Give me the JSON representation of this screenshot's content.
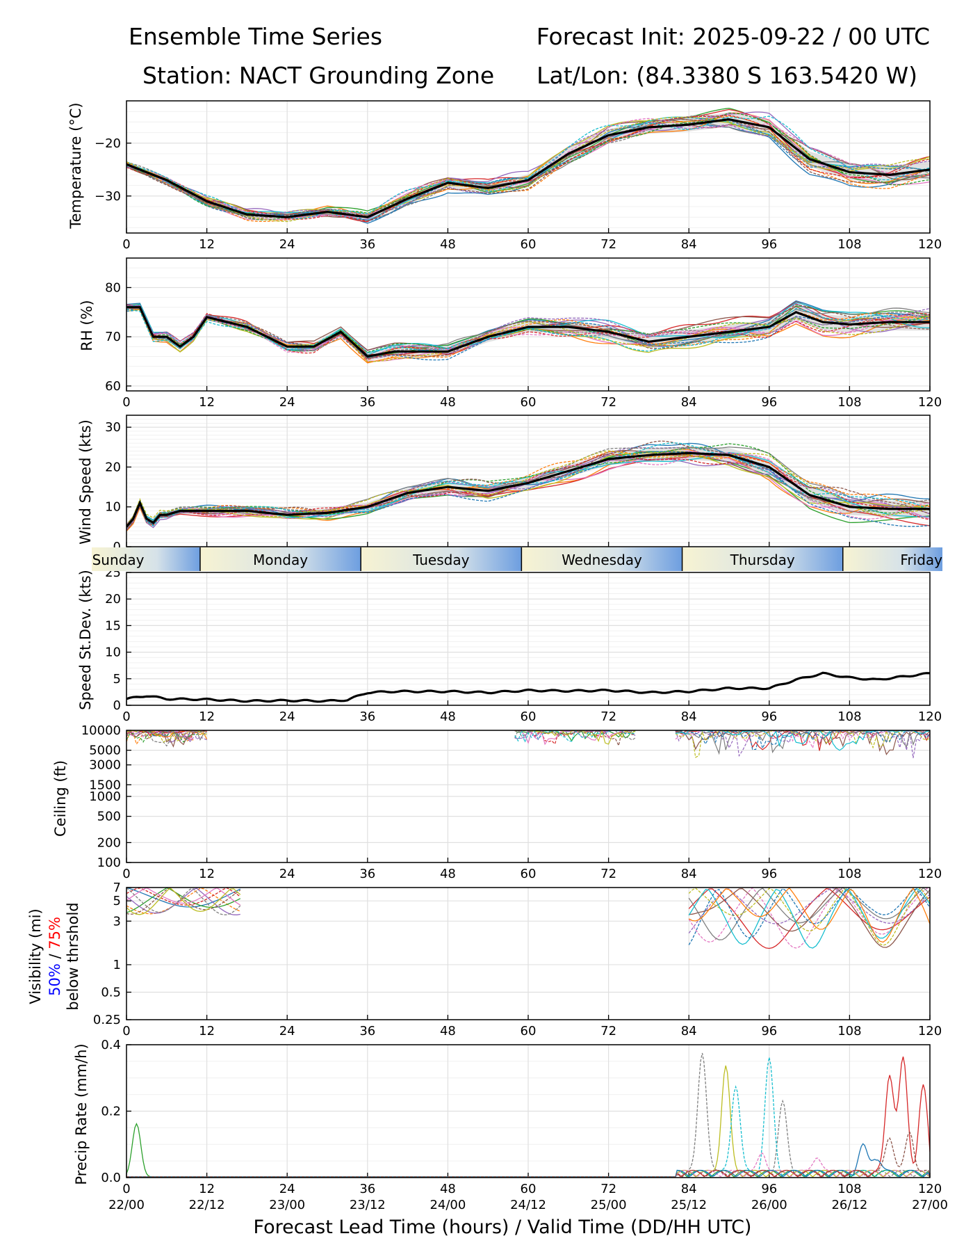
{
  "header": {
    "title": "Ensemble Time Series",
    "station": "Station: NACT Grounding Zone",
    "init": "Forecast Init: 2025-09-22 / 00 UTC",
    "latlon": "Lat/Lon: (84.3380 S 163.5420 W)"
  },
  "xaxis": {
    "label": "Forecast Lead Time (hours) / Valid Time (DD/HH UTC)",
    "ticks": [
      "0",
      "12",
      "24",
      "36",
      "48",
      "60",
      "72",
      "84",
      "96",
      "108",
      "120"
    ],
    "valid_ticks": [
      "22/00",
      "22/12",
      "23/00",
      "23/12",
      "24/00",
      "24/12",
      "25/00",
      "25/12",
      "26/00",
      "26/12",
      "27/00"
    ]
  },
  "day_band": [
    "Sunday",
    "Monday",
    "Tuesday",
    "Wednesday",
    "Thursday",
    "Friday"
  ],
  "colors": {
    "members": [
      "#1f77b4",
      "#ff7f0e",
      "#2ca02c",
      "#d62728",
      "#9467bd",
      "#8c564b",
      "#e377c2",
      "#7f7f7f",
      "#bcbd22",
      "#17becf"
    ],
    "mean": "#000000",
    "spread": "#c8c8c8",
    "vis_50": "#0000ff",
    "vis_75": "#ff0000"
  },
  "chart_data": [
    {
      "type": "line",
      "id": "temperature",
      "ylabel": "Temperature (°C)",
      "ylim": [
        -37,
        -12
      ],
      "yticks": [
        "−20",
        "−30"
      ],
      "ytick_values": [
        -20,
        -30
      ],
      "mean": {
        "x": [
          0,
          6,
          12,
          18,
          24,
          30,
          36,
          42,
          48,
          54,
          60,
          66,
          72,
          78,
          84,
          90,
          96,
          102,
          108,
          114,
          120
        ],
        "y": [
          -24,
          -27,
          -31,
          -33.5,
          -34,
          -33,
          -34,
          -30.5,
          -27.5,
          -28.5,
          -27,
          -22,
          -18.5,
          -17,
          -16.5,
          -15.5,
          -17,
          -23,
          -25.5,
          -26,
          -25
        ]
      }
    },
    {
      "type": "line",
      "id": "rh",
      "ylabel": "RH (%)",
      "ylim": [
        59,
        86
      ],
      "yticks": [
        "80",
        "70",
        "60"
      ],
      "ytick_values": [
        80,
        70,
        60
      ],
      "mean": {
        "x": [
          0,
          2,
          4,
          6,
          8,
          10,
          12,
          18,
          24,
          28,
          32,
          36,
          40,
          48,
          54,
          60,
          66,
          72,
          78,
          84,
          90,
          96,
          100,
          104,
          108,
          114,
          120
        ],
        "y": [
          76,
          76,
          70,
          70,
          68,
          70,
          74,
          72,
          68,
          68,
          71,
          66,
          67,
          67,
          70,
          72,
          72,
          71,
          69,
          70,
          71,
          72,
          75,
          73,
          72.5,
          73,
          73
        ]
      }
    },
    {
      "type": "line",
      "id": "wind",
      "ylabel": "Wind Speed (kts)",
      "ylim": [
        0,
        33
      ],
      "yticks": [
        "30",
        "20",
        "10",
        "0"
      ],
      "ytick_values": [
        30,
        20,
        10,
        0
      ],
      "mean": {
        "x": [
          0,
          1,
          2,
          3,
          4,
          5,
          6,
          8,
          12,
          18,
          24,
          30,
          36,
          42,
          48,
          54,
          60,
          66,
          72,
          78,
          84,
          90,
          96,
          102,
          108,
          114,
          120
        ],
        "y": [
          5,
          7,
          11,
          7,
          6,
          8,
          8,
          9,
          9,
          9,
          8,
          8.5,
          10,
          13.5,
          15,
          14,
          16,
          19,
          22,
          23,
          23.5,
          23,
          20,
          13,
          10,
          9.5,
          9.5
        ]
      }
    },
    {
      "type": "line",
      "id": "speed_stdev",
      "ylabel": "Speed St.Dev. (kts)",
      "ylim": [
        0,
        25
      ],
      "yticks": [
        "25",
        "20",
        "15",
        "10",
        "5",
        "0"
      ],
      "ytick_values": [
        25,
        20,
        15,
        10,
        5,
        0
      ],
      "mean": {
        "x": [
          0,
          3,
          6,
          12,
          18,
          24,
          30,
          33,
          36,
          40,
          48,
          54,
          60,
          66,
          72,
          78,
          84,
          90,
          96,
          100,
          104,
          108,
          112,
          116,
          120
        ],
        "y": [
          1.2,
          1.8,
          1.2,
          1.1,
          0.8,
          0.9,
          0.8,
          1,
          2.4,
          2.6,
          2.6,
          2.4,
          2.8,
          2.7,
          2.8,
          2.4,
          2.6,
          3.2,
          3.2,
          4.8,
          6,
          5.2,
          4.8,
          5.4,
          6
        ]
      }
    },
    {
      "type": "line",
      "id": "ceiling",
      "ylabel": "Ceiling (ft)",
      "scale": "log",
      "ylim": [
        100,
        10000
      ],
      "yticks": [
        "10000",
        "5000",
        "3000",
        "1500",
        "1000",
        "500",
        "200",
        "100"
      ],
      "ytick_values": [
        10000,
        5000,
        3000,
        1500,
        1000,
        500,
        200,
        100
      ]
    },
    {
      "type": "line",
      "id": "visibility",
      "ylabel_1": "Visibility (mi)",
      "ylabel_50": "50%",
      "ylabel_sep": " / ",
      "ylabel_75": "75%",
      "ylabel_2": "below thrshold",
      "scale": "log",
      "ylim": [
        0.25,
        7
      ],
      "yticks": [
        "7",
        "5",
        "3",
        "1",
        "0.5",
        "0.25"
      ],
      "ytick_values": [
        7,
        5,
        3,
        1,
        0.5,
        0.25
      ]
    },
    {
      "type": "line",
      "id": "precip",
      "ylabel": "Precip Rate (mm/h)",
      "ylim": [
        0,
        0.4
      ],
      "yticks": [
        "0.4",
        "0.2",
        "0.0"
      ],
      "ytick_values": [
        0.4,
        0.2,
        0.0
      ]
    }
  ]
}
